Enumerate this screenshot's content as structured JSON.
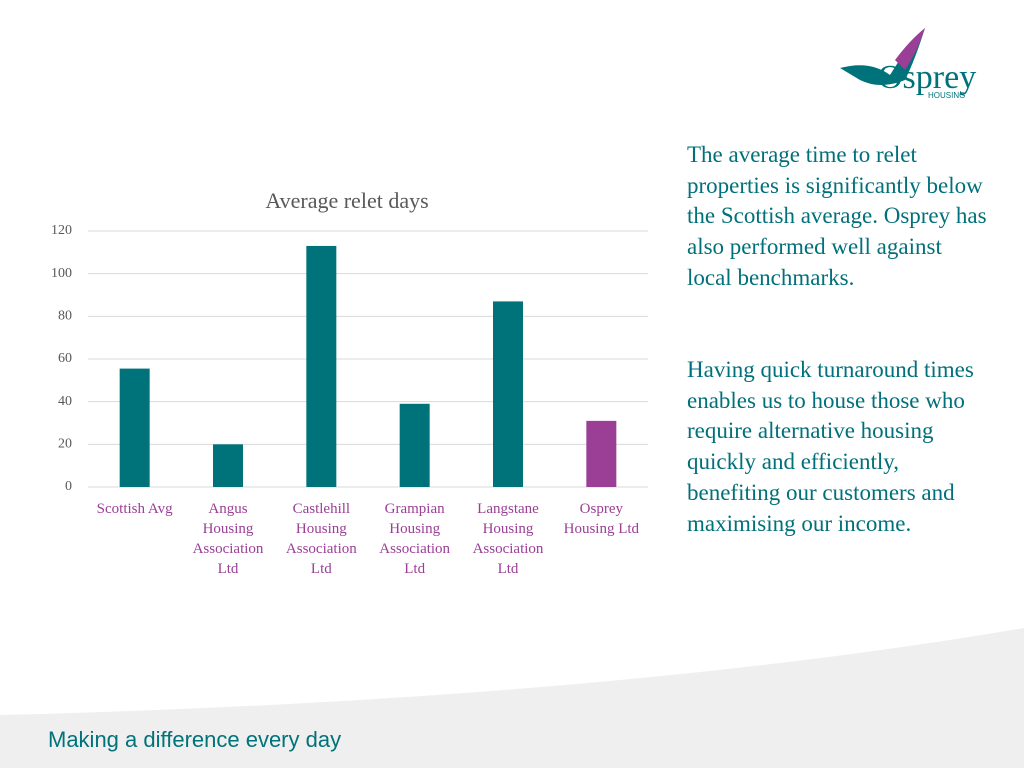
{
  "logo": {
    "name": "Osprey",
    "sub": "HOUSING"
  },
  "chart_data": {
    "type": "bar",
    "title": "Average relet days",
    "categories": [
      "Scottish Avg",
      "Angus Housing Association Ltd",
      "Castlehill Housing Association Ltd",
      "Grampian Housing Association Ltd",
      "Langstane Housing Association Ltd",
      "Osprey Housing Ltd"
    ],
    "values": [
      55.5,
      20,
      113,
      39,
      87,
      31
    ],
    "colors": [
      "#00737a",
      "#00737a",
      "#00737a",
      "#00737a",
      "#00737a",
      "#9b3f96"
    ],
    "ylim": [
      0,
      120
    ],
    "yticks": [
      0,
      20,
      40,
      60,
      80,
      100,
      120
    ],
    "grid": true
  },
  "paragraphs": [
    "The average time to relet properties is significantly below the Scottish average. Osprey has also performed well against local benchmarks.",
    "Having quick turnaround times enables us to house those who require alternative housing quickly and efficiently, benefiting our customers and maximising our income."
  ],
  "footer": "Making a difference every day"
}
